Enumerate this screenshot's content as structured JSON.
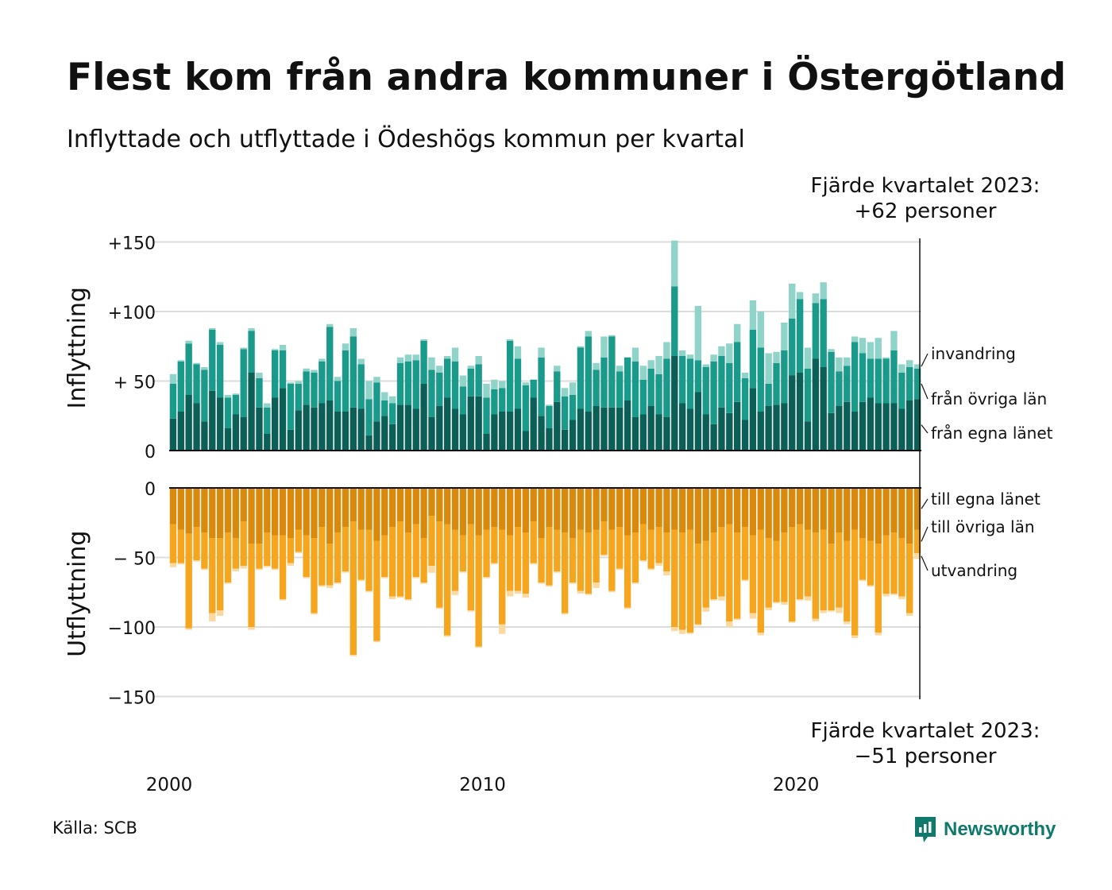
{
  "title": "Flest kom från andra kommuner i Östergötland",
  "subtitle": "Inflyttade och utflyttade i Ödeshögs kommun per kvartal",
  "annotation_top": {
    "line1": "Fjärde kvartalet 2023:",
    "line2": "+62 personer"
  },
  "annotation_bottom": {
    "line1": "Fjärde kvartalet 2023:",
    "line2": "−51 personer"
  },
  "source": "Källa: SCB",
  "brand": {
    "name": "Newsworthy",
    "icon": "bar-chart-bubble-icon",
    "color": "#0f7a6c"
  },
  "colors": {
    "in_egna": "#0b5f57",
    "in_ovriga": "#1a9a8a",
    "in_invandring": "#8fd3c9",
    "ut_egna": "#d98a0c",
    "ut_ovriga": "#f5a51e",
    "ut_utvandring": "#fbd9a0",
    "grid": "#dddddd",
    "axis": "#111111"
  },
  "chart_data": [
    {
      "type": "bar",
      "stacked": true,
      "ylabel": "Inflyttning",
      "ylim": [
        0,
        150
      ],
      "yticks": [
        0,
        50,
        100,
        150
      ],
      "ytick_labels": [
        "0",
        "+ 50",
        "+100",
        "+150"
      ],
      "x_start": "2000 Q1",
      "x_end": "2023 Q4",
      "xticks": [
        2000,
        2010,
        2020
      ],
      "grid": true,
      "series": [
        {
          "name": "från egna länet",
          "color": "#0b5f57",
          "values": [
            23,
            28,
            40,
            34,
            21,
            43,
            38,
            16,
            26,
            24,
            56,
            31,
            12,
            38,
            45,
            15,
            29,
            33,
            31,
            34,
            36,
            28,
            28,
            31,
            30,
            11,
            21,
            25,
            19,
            33,
            33,
            30,
            48,
            24,
            32,
            38,
            30,
            26,
            39,
            39,
            12,
            26,
            28,
            28,
            30,
            14,
            38,
            25,
            16,
            35,
            15,
            22,
            30,
            28,
            32,
            31,
            31,
            31,
            36,
            24,
            26,
            32,
            26,
            24,
            68,
            34,
            30,
            42,
            26,
            19,
            31,
            27,
            35,
            22,
            45,
            28,
            32,
            33,
            34,
            54,
            56,
            21,
            66,
            60,
            27,
            32,
            35,
            28,
            35,
            38,
            34,
            34,
            34,
            30,
            36,
            37
          ]
        },
        {
          "name": "från övriga län",
          "color": "#1a9a8a",
          "values": [
            25,
            36,
            37,
            28,
            37,
            44,
            38,
            22,
            14,
            49,
            30,
            21,
            19,
            34,
            27,
            33,
            19,
            24,
            25,
            30,
            53,
            22,
            44,
            51,
            32,
            26,
            28,
            11,
            15,
            30,
            31,
            35,
            31,
            34,
            24,
            28,
            34,
            20,
            20,
            23,
            26,
            18,
            17,
            51,
            36,
            33,
            13,
            42,
            16,
            22,
            24,
            18,
            44,
            54,
            26,
            36,
            51,
            26,
            31,
            40,
            25,
            27,
            29,
            42,
            50,
            34,
            36,
            23,
            34,
            45,
            37,
            36,
            43,
            30,
            42,
            46,
            16,
            30,
            38,
            41,
            53,
            38,
            40,
            49,
            44,
            25,
            26,
            50,
            35,
            28,
            32,
            32,
            38,
            26,
            24,
            22
          ]
        },
        {
          "name": "invandring",
          "color": "#8fd3c9",
          "values": [
            7,
            1,
            2,
            1,
            2,
            1,
            2,
            2,
            1,
            1,
            2,
            4,
            3,
            1,
            4,
            1,
            2,
            2,
            2,
            2,
            2,
            3,
            5,
            6,
            4,
            13,
            4,
            6,
            5,
            4,
            5,
            4,
            1,
            9,
            5,
            2,
            10,
            8,
            2,
            6,
            10,
            7,
            5,
            1,
            9,
            2,
            0,
            7,
            1,
            4,
            6,
            9,
            1,
            4,
            5,
            15,
            1,
            4,
            0,
            10,
            10,
            6,
            13,
            12,
            33,
            4,
            3,
            39,
            2,
            5,
            7,
            14,
            13,
            4,
            21,
            26,
            22,
            8,
            20,
            25,
            5,
            15,
            7,
            12,
            2,
            10,
            6,
            4,
            11,
            12,
            15,
            1,
            14,
            6,
            5,
            3
          ]
        }
      ]
    },
    {
      "type": "bar",
      "stacked": true,
      "ylabel": "Utflyttning",
      "ylim": [
        -150,
        0
      ],
      "yticks": [
        0,
        -50,
        -100,
        -150
      ],
      "ytick_labels": [
        "0",
        "− 50",
        "−100",
        "−150"
      ],
      "x_start": "2000 Q1",
      "x_end": "2023 Q4",
      "xticks": [
        2000,
        2010,
        2020
      ],
      "grid": true,
      "series": [
        {
          "name": "till egna länet",
          "color": "#d98a0c",
          "values": [
            -26,
            -30,
            -33,
            -28,
            -32,
            -36,
            -36,
            -32,
            -36,
            -24,
            -40,
            -40,
            -32,
            -34,
            -34,
            -36,
            -30,
            -34,
            -36,
            -28,
            -40,
            -32,
            -28,
            -24,
            -30,
            -30,
            -38,
            -34,
            -28,
            -24,
            -32,
            -26,
            -36,
            -20,
            -24,
            -26,
            -30,
            -34,
            -26,
            -34,
            -30,
            -28,
            -30,
            -34,
            -28,
            -32,
            -24,
            -36,
            -28,
            -30,
            -32,
            -36,
            -30,
            -32,
            -30,
            -24,
            -30,
            -28,
            -34,
            -32,
            -26,
            -30,
            -28,
            -32,
            -30,
            -32,
            -30,
            -40,
            -38,
            -32,
            -28,
            -26,
            -32,
            -28,
            -34,
            -30,
            -36,
            -38,
            -32,
            -28,
            -26,
            -30,
            -32,
            -30,
            -40,
            -32,
            -38,
            -30,
            -36,
            -38,
            -40,
            -34,
            -32,
            -36,
            -40,
            -30
          ]
        },
        {
          "name": "till övriga län",
          "color": "#f5a51e",
          "values": [
            -28,
            -24,
            -68,
            -24,
            -26,
            -54,
            -52,
            -36,
            -22,
            -32,
            -60,
            -18,
            -24,
            -24,
            -46,
            -18,
            -16,
            -30,
            -54,
            -42,
            -30,
            -36,
            -32,
            -96,
            -36,
            -44,
            -72,
            -30,
            -50,
            -54,
            -48,
            -38,
            -32,
            -36,
            -62,
            -80,
            -44,
            -26,
            -62,
            -80,
            -34,
            -26,
            -68,
            -40,
            -46,
            -44,
            -30,
            -32,
            -42,
            -30,
            -58,
            -32,
            -44,
            -44,
            -38,
            -24,
            -44,
            -30,
            -52,
            -36,
            -26,
            -28,
            -26,
            -28,
            -70,
            -70,
            -74,
            -58,
            -48,
            -48,
            -50,
            -70,
            -62,
            -38,
            -56,
            -74,
            -50,
            -44,
            -50,
            -68,
            -54,
            -48,
            -62,
            -58,
            -48,
            -54,
            -58,
            -76,
            -30,
            -32,
            -64,
            -42,
            -44,
            -42,
            -50,
            -17
          ]
        },
        {
          "name": "utvandring",
          "color": "#fbd9a0",
          "values": [
            -3,
            -1,
            -1,
            -1,
            -1,
            -6,
            -4,
            -1,
            -2,
            -2,
            -2,
            -1,
            -1,
            -1,
            -1,
            -2,
            -1,
            -1,
            -1,
            -1,
            -2,
            -1,
            -1,
            -1,
            -1,
            -1,
            -1,
            -1,
            -2,
            -1,
            -1,
            -1,
            -1,
            -5,
            -1,
            -1,
            -3,
            -1,
            -1,
            -1,
            -1,
            -1,
            -7,
            -4,
            -2,
            -3,
            -1,
            -1,
            -1,
            -1,
            -1,
            -1,
            -2,
            -1,
            -4,
            -1,
            -1,
            -1,
            -1,
            -1,
            -1,
            -1,
            -2,
            -3,
            -3,
            -3,
            -1,
            -1,
            -3,
            -1,
            -3,
            -4,
            -1,
            -1,
            -4,
            -2,
            -2,
            -1,
            -2,
            -1,
            -1,
            -3,
            -2,
            -2,
            -1,
            -4,
            -2,
            -2,
            -1,
            -1,
            -2,
            -2,
            -1,
            -2,
            -2,
            -4
          ]
        }
      ]
    }
  ]
}
